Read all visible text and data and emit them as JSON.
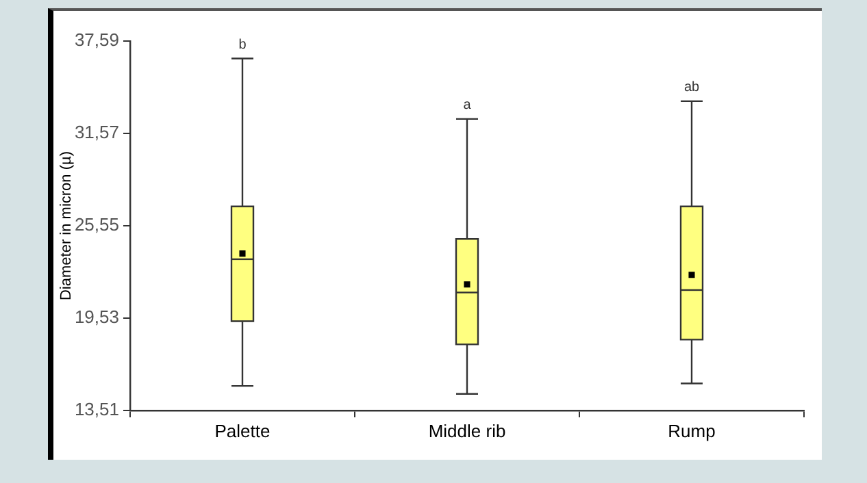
{
  "chart_data": {
    "type": "box",
    "ylabel": "Diameter in micron (µ)",
    "categories": [
      "Palette",
      "Middle rib",
      "Rump"
    ],
    "color": "#ffff80",
    "boxes": [
      {
        "low": 15.11,
        "q1": 19.33,
        "median": 23.37,
        "q3": 26.81,
        "high": 36.45,
        "mean": 23.74
      },
      {
        "low": 14.59,
        "q1": 17.82,
        "median": 21.2,
        "q3": 24.69,
        "high": 32.51,
        "mean": 21.73
      },
      {
        "low": 15.27,
        "q1": 18.13,
        "median": 21.36,
        "q3": 26.81,
        "high": 33.67,
        "mean": 22.35
      }
    ],
    "ylim": [
      13.51,
      37.59
    ],
    "yticks": [
      {
        "value": 13.51,
        "label": "13,51"
      },
      {
        "value": 19.53,
        "label": "19,53"
      },
      {
        "value": 25.55,
        "label": "25,55"
      },
      {
        "value": 31.57,
        "label": "31,57"
      },
      {
        "value": 37.59,
        "label": "37,59"
      }
    ],
    "grid": false,
    "legend": false,
    "marker": "square",
    "annotations": [
      "b",
      "a",
      "ab"
    ]
  }
}
